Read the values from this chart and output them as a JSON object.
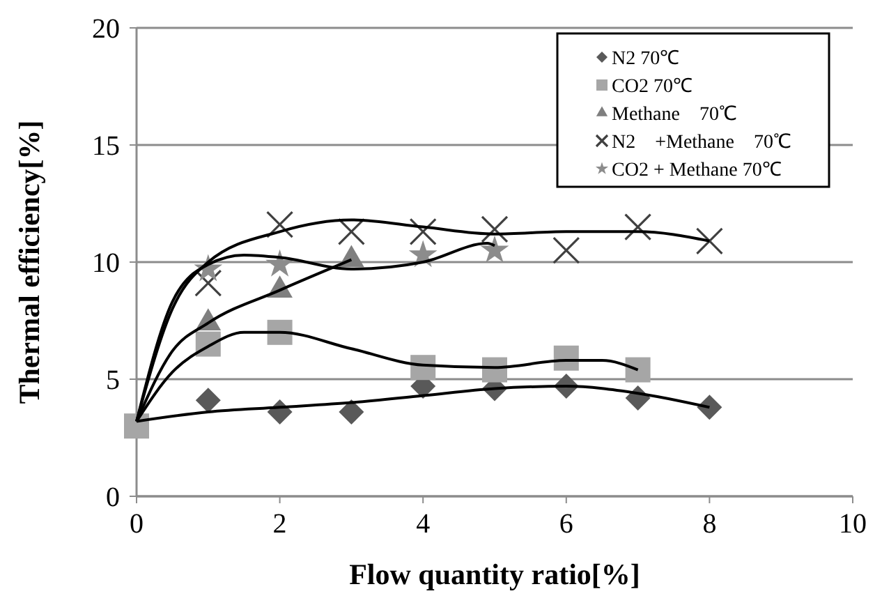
{
  "chart_data": {
    "type": "scatter",
    "xlabel": "Flow quantity ratio[%]",
    "ylabel": "Thermal efficiency[%]",
    "xlim": [
      0,
      10
    ],
    "xticks": [
      0,
      2,
      4,
      6,
      8,
      10
    ],
    "ylim": [
      0,
      20
    ],
    "yticks": [
      0,
      5,
      10,
      15,
      20
    ],
    "grid": "y",
    "legend": "top right",
    "series": [
      {
        "name": "N2 70℃",
        "color": "#595959",
        "marker": "diamond",
        "x": [
          1,
          2,
          3,
          4,
          5,
          6,
          7,
          8
        ],
        "values": [
          4.1,
          3.6,
          3.6,
          4.7,
          4.6,
          4.7,
          4.2,
          3.8
        ]
      },
      {
        "name": "CO2 70℃",
        "color": "#a6a6a6",
        "marker": "square",
        "x": [
          0,
          1,
          2,
          4,
          5,
          6,
          7
        ],
        "values": [
          3.0,
          6.5,
          7.0,
          5.5,
          5.4,
          5.9,
          5.4
        ]
      },
      {
        "name": "Methane　70℃",
        "color": "#7f7f7f",
        "marker": "triangle",
        "x": [
          1,
          2,
          3
        ],
        "values": [
          7.4,
          8.8,
          10.1
        ]
      },
      {
        "name": "N2　+Methane　70℃",
        "color": "#404040",
        "marker": "cross",
        "x": [
          1,
          2,
          3,
          4,
          5,
          6,
          7,
          8
        ],
        "values": [
          9.1,
          11.6,
          11.3,
          11.3,
          11.4,
          10.5,
          11.5,
          10.9
        ]
      },
      {
        "name": "CO2 + Methane 70℃",
        "color": "#8c8c8c",
        "marker": "star",
        "x": [
          1,
          2,
          4,
          5
        ],
        "values": [
          9.7,
          9.9,
          10.3,
          10.5
        ]
      },
      {
        "type": "line",
        "color": "#000000",
        "marker": "none",
        "x": [
          0,
          1,
          2,
          3,
          4,
          5,
          6,
          7,
          8
        ],
        "values": [
          3.2,
          3.6,
          3.8,
          4.0,
          4.3,
          4.6,
          4.7,
          4.4,
          3.8
        ]
      },
      {
        "type": "line",
        "color": "#000000",
        "marker": "none",
        "x": [
          0,
          0.5,
          1,
          1.5,
          2,
          3,
          4,
          5,
          6,
          6.5,
          7
        ],
        "values": [
          3.2,
          5.3,
          6.4,
          7.0,
          7.0,
          6.3,
          5.6,
          5.5,
          5.8,
          5.8,
          5.4
        ]
      },
      {
        "type": "line",
        "color": "#000000",
        "marker": "none",
        "x": [
          0,
          0.5,
          1,
          2,
          3
        ],
        "values": [
          3.2,
          6.2,
          7.4,
          8.8,
          10.1
        ]
      },
      {
        "type": "line",
        "color": "#000000",
        "marker": "none",
        "x": [
          0,
          0.5,
          1,
          2,
          3,
          4,
          5,
          6,
          7,
          8
        ],
        "values": [
          3.2,
          8.0,
          10.0,
          11.3,
          11.8,
          11.5,
          11.2,
          11.3,
          11.3,
          10.9
        ]
      },
      {
        "type": "line",
        "color": "#000000",
        "marker": "none",
        "x": [
          0,
          0.5,
          1,
          1.5,
          2,
          3,
          4,
          4.9,
          5
        ],
        "values": [
          3.2,
          8.3,
          9.9,
          10.3,
          10.2,
          9.7,
          10.0,
          10.8,
          10.7
        ]
      }
    ]
  }
}
